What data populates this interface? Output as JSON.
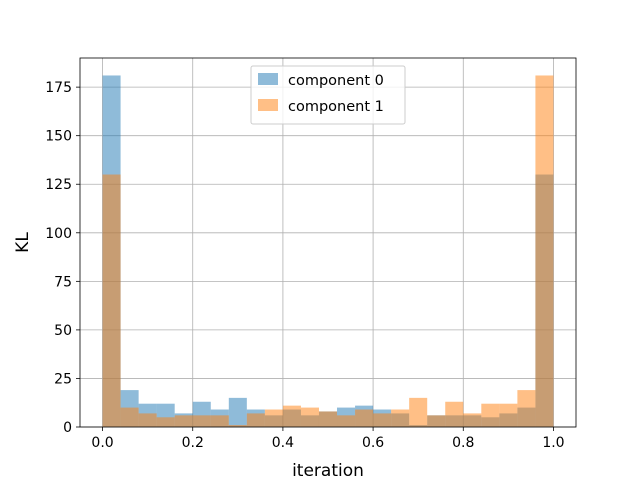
{
  "chart_data": {
    "type": "bar",
    "subtype": "histogram",
    "xlabel": "iteration",
    "ylabel": "KL",
    "xlim": [
      -0.05,
      1.05
    ],
    "ylim": [
      0,
      190
    ],
    "xticks": [
      0.0,
      0.2,
      0.4,
      0.6,
      0.8,
      1.0
    ],
    "xtick_labels": [
      "0.0",
      "0.2",
      "0.4",
      "0.6",
      "0.8",
      "1.0"
    ],
    "yticks": [
      0,
      25,
      50,
      75,
      100,
      125,
      150,
      175
    ],
    "ytick_labels": [
      "0",
      "25",
      "50",
      "75",
      "100",
      "125",
      "150",
      "175"
    ],
    "grid": true,
    "legend_position": "top-center",
    "bin_edges": [
      0.0,
      0.04,
      0.08,
      0.12,
      0.16,
      0.2,
      0.24,
      0.28,
      0.32,
      0.36,
      0.4,
      0.44,
      0.48,
      0.52,
      0.56,
      0.6,
      0.64,
      0.68,
      0.72,
      0.76,
      0.8,
      0.84,
      0.88,
      0.92,
      0.96,
      1.0
    ],
    "series": [
      {
        "name": "component 0",
        "color": "#1f77b4",
        "opacity": 0.5,
        "values": [
          181,
          19,
          12,
          12,
          7,
          13,
          9,
          15,
          9,
          6,
          9,
          6,
          8,
          10,
          11,
          9,
          7,
          1,
          6,
          6,
          6,
          5,
          7,
          10,
          130
        ]
      },
      {
        "name": "component 1",
        "color": "#ff7f0e",
        "opacity": 0.5,
        "values": [
          130,
          10,
          7,
          5,
          6,
          6,
          6,
          1,
          7,
          9,
          11,
          10,
          8,
          6,
          9,
          7,
          9,
          15,
          6,
          13,
          7,
          12,
          12,
          19,
          181
        ]
      }
    ]
  }
}
